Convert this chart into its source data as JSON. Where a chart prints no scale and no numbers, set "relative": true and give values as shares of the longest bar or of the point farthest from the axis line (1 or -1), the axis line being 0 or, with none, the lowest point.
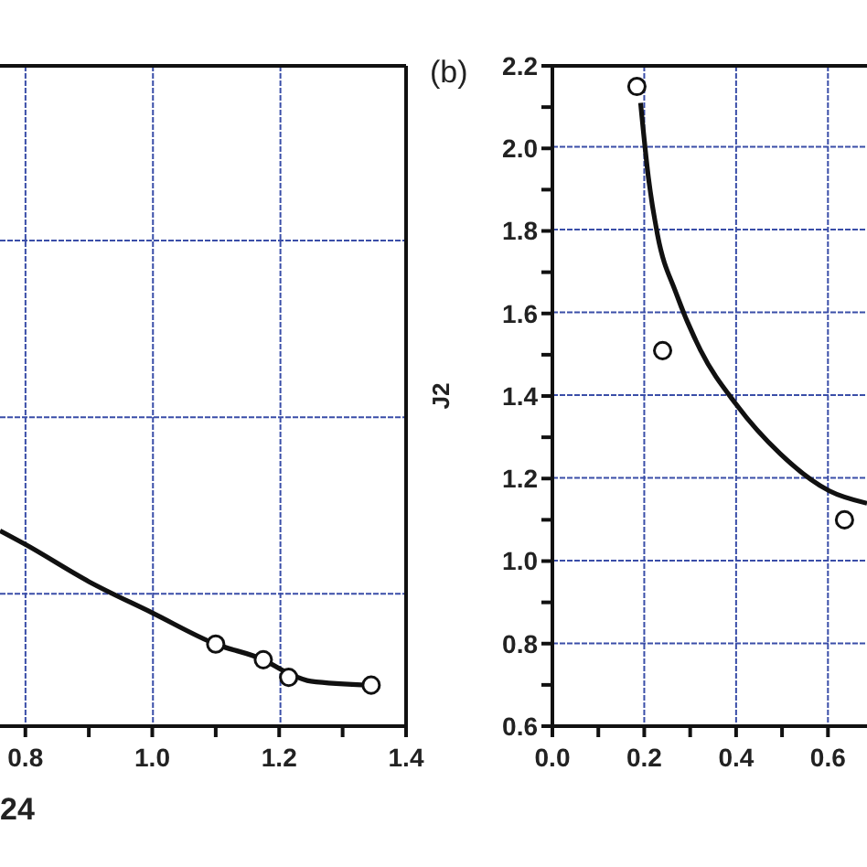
{
  "chart_data": [
    {
      "type": "line",
      "relative": true,
      "xlabel": "24",
      "xlim": [
        0.76,
        1.4
      ],
      "xticks": [
        {
          "value": 0.8,
          "label": "0.8"
        },
        {
          "value": 0.9,
          "label": null
        },
        {
          "value": 1.0,
          "label": "1.0"
        },
        {
          "value": 1.1,
          "label": null
        },
        {
          "value": 1.2,
          "label": "1.2"
        },
        {
          "value": 1.3,
          "label": null
        },
        {
          "value": 1.4,
          "label": "1.4"
        }
      ],
      "tick_labels": "x",
      "grid": true,
      "series": [
        {
          "color": "#111111",
          "marker": "none",
          "x": [
            0.76,
            0.8,
            0.9,
            1.0,
            1.1,
            1.175,
            1.215,
            1.25,
            1.345
          ],
          "values": [
            1,
            0.93,
            0.74,
            0.58,
            0.42,
            0.34,
            0.27,
            0.23,
            0.21
          ]
        },
        {
          "type": "scatter",
          "color": "#111111",
          "marker": "circle",
          "x": [
            1.1,
            1.175,
            1.215,
            1.345
          ],
          "values": [
            0.42,
            0.34,
            0.25,
            0.21
          ]
        }
      ]
    },
    {
      "type": "line",
      "title": "(b)",
      "ylabel": "J2",
      "xlim": [
        0,
        0.685
      ],
      "ylim": [
        0.6,
        2.2
      ],
      "xticks": [
        {
          "value": 0,
          "label": "0.0"
        },
        {
          "value": 0.1,
          "label": null
        },
        {
          "value": 0.2,
          "label": "0.2"
        },
        {
          "value": 0.3,
          "label": null
        },
        {
          "value": 0.4,
          "label": "0.4"
        },
        {
          "value": 0.5,
          "label": null
        },
        {
          "value": 0.6,
          "label": "0.6"
        }
      ],
      "yticks": [
        {
          "value": 0.6,
          "label": "0.6"
        },
        {
          "value": 0.7,
          "label": null
        },
        {
          "value": 0.8,
          "label": "0.8"
        },
        {
          "value": 0.9,
          "label": null
        },
        {
          "value": 1.0,
          "label": "1.0"
        },
        {
          "value": 1.1,
          "label": null
        },
        {
          "value": 1.2,
          "label": "1.2"
        },
        {
          "value": 1.3,
          "label": null
        },
        {
          "value": 1.4,
          "label": "1.4"
        },
        {
          "value": 1.5,
          "label": null
        },
        {
          "value": 1.6,
          "label": "1.6"
        },
        {
          "value": 1.7,
          "label": null
        },
        {
          "value": 1.8,
          "label": "1.8"
        },
        {
          "value": 1.9,
          "label": null
        },
        {
          "value": 2.0,
          "label": "2.0"
        },
        {
          "value": 2.1,
          "label": null
        },
        {
          "value": 2.2,
          "label": "2.2"
        }
      ],
      "grid": true,
      "series": [
        {
          "color": "#111111",
          "marker": "none",
          "x": [
            0.192,
            0.209,
            0.229,
            0.269,
            0.323,
            0.4,
            0.496,
            0.603,
            0.685
          ],
          "values": [
            2.11,
            1.93,
            1.79,
            1.65,
            1.51,
            1.38,
            1.26,
            1.17,
            1.14
          ]
        },
        {
          "type": "scatter",
          "color": "#111111",
          "marker": "circle",
          "x": [
            0.184,
            0.24,
            0.636
          ],
          "values": [
            2.15,
            1.51,
            1.1
          ]
        }
      ]
    }
  ]
}
